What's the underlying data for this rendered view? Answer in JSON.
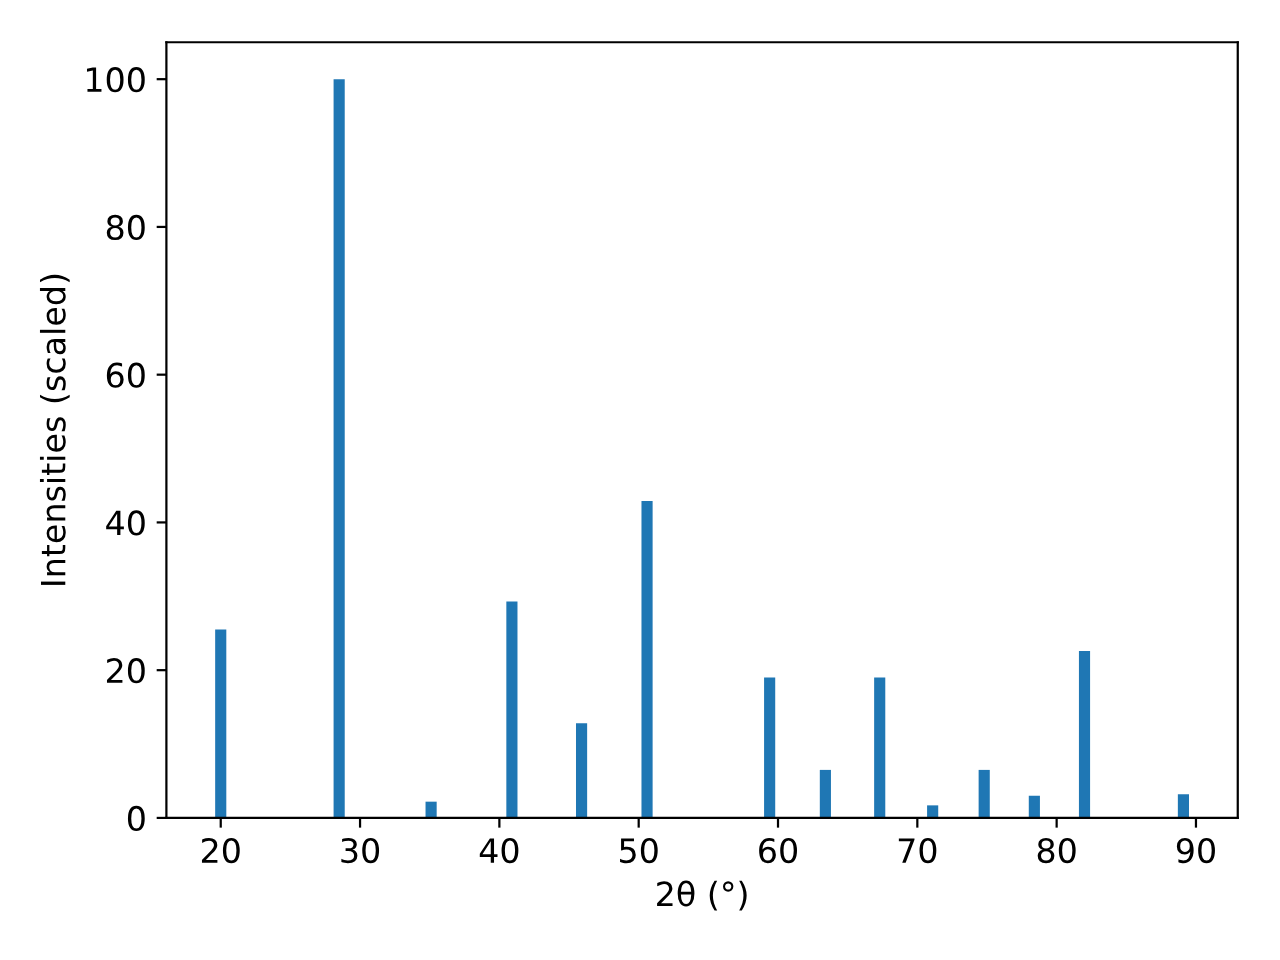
{
  "chart_data": {
    "type": "bar",
    "xlabel": "2θ (°)",
    "ylabel": "Intensities (scaled)",
    "x": [
      20.0,
      28.5,
      35.1,
      40.9,
      45.9,
      50.6,
      59.4,
      63.4,
      67.3,
      71.1,
      74.8,
      78.4,
      82.0,
      89.1
    ],
    "values": [
      25.5,
      100,
      2.2,
      29.3,
      12.8,
      42.9,
      19.0,
      6.5,
      19.0,
      1.7,
      6.5,
      3.0,
      22.6,
      3.2
    ],
    "color": "#1f77b4",
    "xlim": [
      16.1,
      93.0
    ],
    "ylim": [
      0,
      105
    ],
    "xticks": [
      20,
      30,
      40,
      50,
      60,
      70,
      80,
      90
    ],
    "yticks": [
      0,
      20,
      40,
      60,
      80,
      100
    ],
    "grid": false,
    "legend": false
  }
}
